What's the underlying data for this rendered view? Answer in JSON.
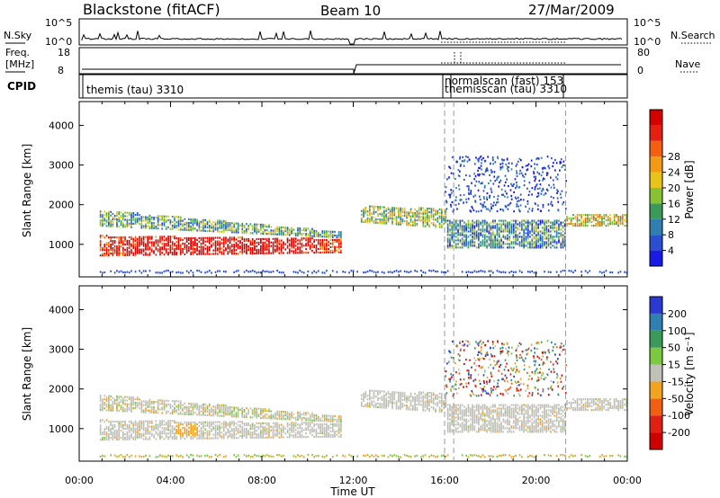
{
  "header": {
    "title": "Blackstone (fitACF)",
    "beam": "Beam 10",
    "date": "27/Mar/2009"
  },
  "side_labels": {
    "nsky": "N.Sky",
    "freq_line1": "Freq.",
    "freq_line2": "[MHz]",
    "cpid": "CPID",
    "nsearch": "N.Search",
    "nave": "Nave"
  },
  "strip_ticks": {
    "nsky_top": "10^5",
    "nsky_bottom": "10^0",
    "freq_top": "18",
    "freq_bottom": "8",
    "nave_top": "80",
    "nave_bottom": "0"
  },
  "cpid_labels": {
    "main": "themis (tau) 3310",
    "overlap1": "normalscan (fast) 153",
    "overlap2": "themisscan (tau) 3310"
  },
  "colors": {
    "frame": "#000000",
    "dashed_marker": "#9a9a9a",
    "ground_scatter": "#c0c0b8"
  },
  "chart_data": [
    {
      "type": "heatmap",
      "title": "",
      "ylabel": "Slant Range [km]",
      "xlabel": "",
      "x_ticks": [
        "00:00",
        "04:00",
        "08:00",
        "12:00",
        "16:00",
        "20:00",
        "00:00"
      ],
      "y_ticks": [
        1000,
        2000,
        3000,
        4000
      ],
      "ylim": [
        180,
        4600
      ],
      "colorbar": {
        "label": "Power [dB]",
        "tick_labels": [
          "4",
          "8",
          "12",
          "16",
          "20",
          "24",
          "28"
        ],
        "colors": [
          "#1a1ae6",
          "#2a4fd0",
          "#2f7fb0",
          "#3b9a5a",
          "#86c232",
          "#e8c41a",
          "#f29a16",
          "#f46010",
          "#e62010",
          "#d40000"
        ]
      }
    },
    {
      "type": "heatmap",
      "title": "",
      "ylabel": "Slant Range [km]",
      "xlabel": "Time UT",
      "x_ticks": [
        "00:00",
        "04:00",
        "08:00",
        "12:00",
        "16:00",
        "20:00",
        "00:00"
      ],
      "y_ticks": [
        1000,
        2000,
        3000,
        4000
      ],
      "ylim": [
        180,
        4600
      ],
      "colorbar": {
        "label": "Velocity [m s⁻¹]",
        "tick_labels": [
          "200",
          "100",
          "50",
          "15",
          "-15",
          "-50",
          "-100",
          "-200"
        ],
        "colors": [
          "#2a3ad0",
          "#2f7fb0",
          "#3b9a5a",
          "#7cc840",
          "#c0c0b8",
          "#f0a420",
          "#f06010",
          "#e02010",
          "#d00000"
        ]
      }
    }
  ]
}
